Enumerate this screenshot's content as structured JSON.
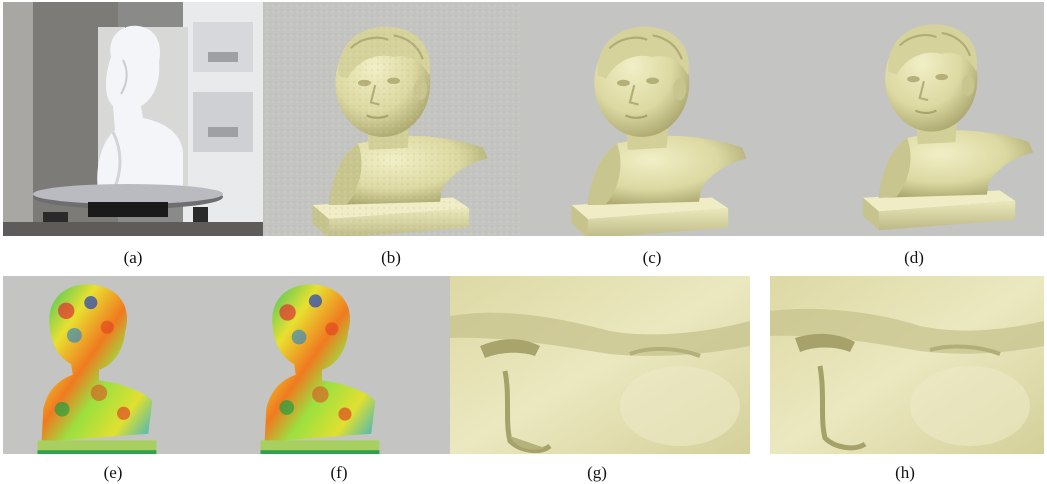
{
  "figure": {
    "panels": [
      {
        "id": "a",
        "caption": "(a)",
        "depicts": "photograph of plaster bust on turntable scanner"
      },
      {
        "id": "b",
        "caption": "(b)",
        "depicts": "noisy scanned bust mesh"
      },
      {
        "id": "c",
        "caption": "(c)",
        "depicts": "smoothed bust mesh"
      },
      {
        "id": "d",
        "caption": "(d)",
        "depicts": "smoothed bust mesh, alternate result"
      },
      {
        "id": "e",
        "caption": "(e)",
        "depicts": "curvature color map"
      },
      {
        "id": "f",
        "caption": "(f)",
        "depicts": "curvature color map, alternate"
      },
      {
        "id": "g",
        "caption": "(g)",
        "depicts": "close-up of eye and nose region"
      },
      {
        "id": "h",
        "caption": "(h)",
        "depicts": "close-up of eye and nose region, alternate"
      }
    ]
  },
  "colors": {
    "background_gray": "#c4c4c2",
    "mesh_yellow": "#e6e3b0",
    "mesh_shadow": "#b9b580",
    "caption_text": "#111111"
  }
}
